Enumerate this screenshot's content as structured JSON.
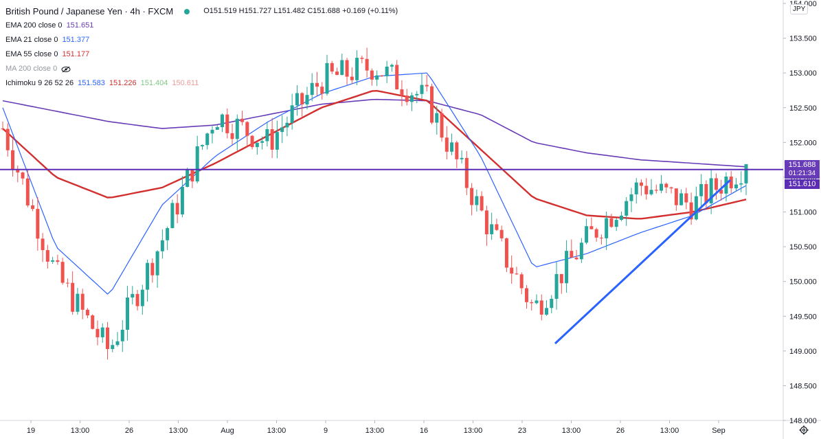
{
  "header": {
    "symbol": "British Pound / Japanese Yen · 4h · FXCM",
    "ohlc": "O151.519 H151.727 L151.482 C151.688 +0.169 (+0.11%)"
  },
  "indicators": [
    {
      "name": "EMA 200 close 0",
      "value": "151.651",
      "color": "#673ab7"
    },
    {
      "name": "EMA 21 close 0",
      "value": "151.377",
      "color": "#2962ff"
    },
    {
      "name": "EMA 55 close 0",
      "value": "151.177",
      "color": "#d32f2f"
    },
    {
      "name": "MA 200 close 0",
      "value": "",
      "color": "#9598a1",
      "hidden": true
    },
    {
      "name": "Ichimoku 9 26 52 26",
      "values": [
        "151.583",
        "151.226",
        "151.404",
        "150.611"
      ],
      "colors": [
        "#2962ff",
        "#d32f2f",
        "#81c784",
        "#ef9a9a"
      ]
    }
  ],
  "price_axis": {
    "currency": "JPY",
    "last_price": "151.688",
    "countdown": "01:21:34",
    "line_price": "151.610",
    "ticks": [
      "154.000",
      "153.500",
      "153.000",
      "152.500",
      "152.000",
      "151.500",
      "151.000",
      "150.500",
      "150.000",
      "149.500",
      "149.000",
      "148.500",
      "148.000"
    ]
  },
  "time_axis": [
    "19",
    "13:00",
    "26",
    "13:00",
    "Aug",
    "13:00",
    "9",
    "13:00",
    "16",
    "13:00",
    "23",
    "13:00",
    "26",
    "13:00",
    "Sep"
  ],
  "colors": {
    "up": "#26a69a",
    "down": "#ef5350",
    "ema200": "#673ab7",
    "ema21": "#2962ff",
    "ema55": "#d32f2f",
    "trendline": "#2962ff",
    "hline": "#5b2db5"
  },
  "chart_data": {
    "type": "line",
    "title": "British Pound / Japanese Yen · 4h · FXCM",
    "ylim": [
      148.0,
      154.0
    ],
    "x": [
      "19",
      "13:00",
      "26",
      "13:00",
      "Aug",
      "13:00",
      "9",
      "13:00",
      "16",
      "13:00",
      "23",
      "13:00",
      "26",
      "13:00",
      "Sep"
    ],
    "series": [
      {
        "name": "EMA 200 close 0",
        "values": [
          152.6,
          152.45,
          152.3,
          152.2,
          152.25,
          152.4,
          152.55,
          152.62,
          152.6,
          152.4,
          152.0,
          151.85,
          151.75,
          151.7,
          151.65
        ]
      },
      {
        "name": "EMA 21 close 0",
        "values": [
          152.5,
          150.5,
          149.8,
          151.1,
          151.8,
          152.3,
          152.7,
          152.95,
          153.0,
          151.8,
          150.2,
          150.4,
          150.7,
          150.95,
          151.38
        ]
      },
      {
        "name": "EMA 55 close 0",
        "values": [
          152.2,
          151.5,
          151.2,
          151.35,
          151.7,
          152.1,
          152.5,
          152.75,
          152.6,
          151.9,
          151.2,
          150.95,
          150.9,
          151.0,
          151.18
        ]
      }
    ],
    "price_series_close": [
      152.2,
      150.1,
      149.0,
      150.6,
      152.4,
      152.0,
      152.9,
      153.1,
      152.6,
      151.0,
      149.6,
      150.6,
      151.4,
      151.1,
      151.69
    ]
  }
}
